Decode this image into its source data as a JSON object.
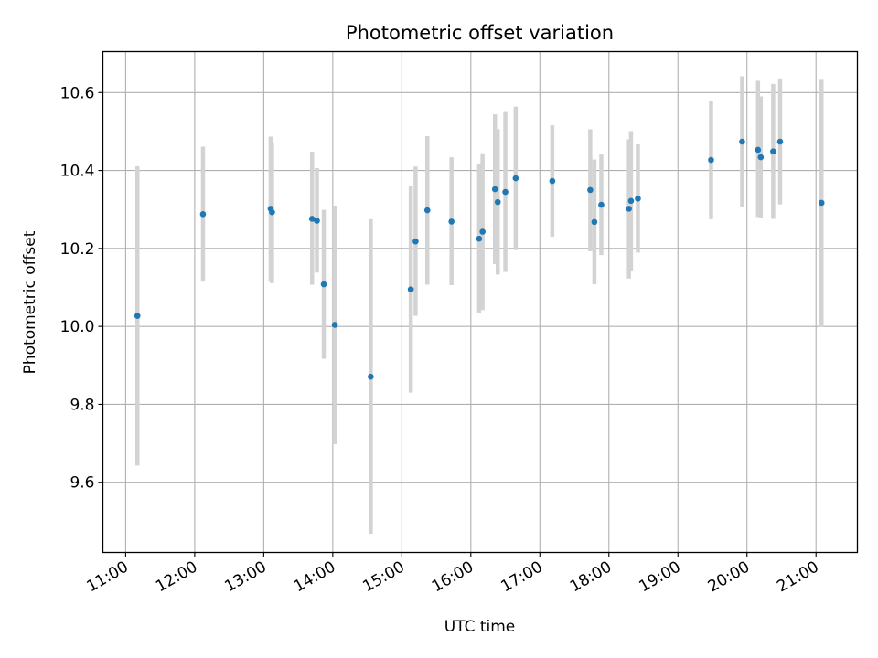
{
  "chart_data": {
    "type": "scatter",
    "title": "Photometric offset variation",
    "xlabel": "UTC time",
    "ylabel": "Photometric offset",
    "x_unit": "hours UTC",
    "xlim": [
      10.67,
      21.6
    ],
    "ylim": [
      9.42,
      10.705
    ],
    "grid": true,
    "colors": {
      "points": "#1f77b4",
      "errorbars": "#d3d3d3",
      "grid": "#b0b0b0"
    },
    "x_ticks": [
      {
        "value": 11,
        "label": "11:00"
      },
      {
        "value": 12,
        "label": "12:00"
      },
      {
        "value": 13,
        "label": "13:00"
      },
      {
        "value": 14,
        "label": "14:00"
      },
      {
        "value": 15,
        "label": "15:00"
      },
      {
        "value": 16,
        "label": "16:00"
      },
      {
        "value": 17,
        "label": "17:00"
      },
      {
        "value": 18,
        "label": "18:00"
      },
      {
        "value": 19,
        "label": "19:00"
      },
      {
        "value": 20,
        "label": "20:00"
      },
      {
        "value": 21,
        "label": "21:00"
      }
    ],
    "y_ticks": [
      {
        "value": 9.6,
        "label": "9.6"
      },
      {
        "value": 9.8,
        "label": "9.8"
      },
      {
        "value": 10.0,
        "label": "10.0"
      },
      {
        "value": 10.2,
        "label": "10.2"
      },
      {
        "value": 10.4,
        "label": "10.4"
      },
      {
        "value": 10.6,
        "label": "10.6"
      }
    ],
    "points": [
      {
        "t": 11.17,
        "y": 10.027,
        "lo": 9.643,
        "hi": 10.411
      },
      {
        "t": 12.12,
        "y": 10.288,
        "lo": 10.115,
        "hi": 10.461
      },
      {
        "t": 13.1,
        "y": 10.302,
        "lo": 10.115,
        "hi": 10.487
      },
      {
        "t": 13.12,
        "y": 10.293,
        "lo": 10.111,
        "hi": 10.472
      },
      {
        "t": 13.7,
        "y": 10.276,
        "lo": 10.107,
        "hi": 10.448
      },
      {
        "t": 13.77,
        "y": 10.271,
        "lo": 10.138,
        "hi": 10.406
      },
      {
        "t": 13.87,
        "y": 10.108,
        "lo": 9.917,
        "hi": 10.299
      },
      {
        "t": 14.03,
        "y": 10.004,
        "lo": 9.698,
        "hi": 10.31
      },
      {
        "t": 14.55,
        "y": 9.871,
        "lo": 9.468,
        "hi": 10.275
      },
      {
        "t": 15.13,
        "y": 10.095,
        "lo": 9.83,
        "hi": 10.361
      },
      {
        "t": 15.2,
        "y": 10.218,
        "lo": 10.027,
        "hi": 10.41
      },
      {
        "t": 15.37,
        "y": 10.298,
        "lo": 10.107,
        "hi": 10.488
      },
      {
        "t": 15.72,
        "y": 10.269,
        "lo": 10.106,
        "hi": 10.434
      },
      {
        "t": 16.12,
        "y": 10.225,
        "lo": 10.034,
        "hi": 10.416
      },
      {
        "t": 16.17,
        "y": 10.243,
        "lo": 10.042,
        "hi": 10.444
      },
      {
        "t": 16.35,
        "y": 10.352,
        "lo": 10.16,
        "hi": 10.544
      },
      {
        "t": 16.39,
        "y": 10.319,
        "lo": 10.133,
        "hi": 10.506
      },
      {
        "t": 16.5,
        "y": 10.345,
        "lo": 10.14,
        "hi": 10.55
      },
      {
        "t": 16.65,
        "y": 10.38,
        "lo": 10.196,
        "hi": 10.564
      },
      {
        "t": 17.18,
        "y": 10.373,
        "lo": 10.23,
        "hi": 10.516
      },
      {
        "t": 17.73,
        "y": 10.35,
        "lo": 10.193,
        "hi": 10.506
      },
      {
        "t": 17.79,
        "y": 10.268,
        "lo": 10.108,
        "hi": 10.428
      },
      {
        "t": 17.89,
        "y": 10.312,
        "lo": 10.183,
        "hi": 10.441
      },
      {
        "t": 18.29,
        "y": 10.302,
        "lo": 10.123,
        "hi": 10.48
      },
      {
        "t": 18.32,
        "y": 10.322,
        "lo": 10.143,
        "hi": 10.501
      },
      {
        "t": 18.42,
        "y": 10.328,
        "lo": 10.189,
        "hi": 10.467
      },
      {
        "t": 19.48,
        "y": 10.427,
        "lo": 10.275,
        "hi": 10.579
      },
      {
        "t": 19.93,
        "y": 10.474,
        "lo": 10.306,
        "hi": 10.642
      },
      {
        "t": 20.16,
        "y": 10.453,
        "lo": 10.281,
        "hi": 10.63
      },
      {
        "t": 20.2,
        "y": 10.434,
        "lo": 10.278,
        "hi": 10.59
      },
      {
        "t": 20.38,
        "y": 10.449,
        "lo": 10.276,
        "hi": 10.622
      },
      {
        "t": 20.48,
        "y": 10.474,
        "lo": 10.313,
        "hi": 10.636
      },
      {
        "t": 21.08,
        "y": 10.317,
        "lo": 9.999,
        "hi": 10.635
      }
    ]
  }
}
